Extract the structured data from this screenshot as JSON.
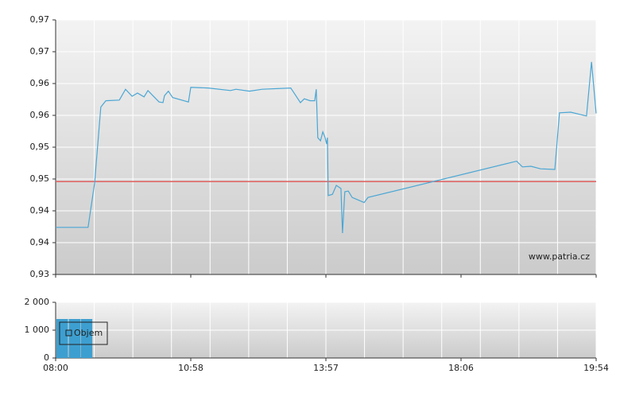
{
  "chart_data": [
    {
      "type": "line",
      "color": "#4aa6d4",
      "x": [
        0,
        0.84,
        1.01,
        1.17,
        1.3,
        1.65,
        1.81,
        1.98,
        2.12,
        2.29,
        2.39,
        2.55,
        2.68,
        2.78,
        2.82,
        2.92,
        3.03,
        3.44,
        3.5,
        3.95,
        4.53,
        4.67,
        5.02,
        5.35,
        6.09,
        6.34,
        6.44,
        6.59,
        6.71,
        6.75,
        6.79,
        6.86,
        6.92,
        6.98,
        7.02,
        7.04,
        7.06,
        7.17,
        7.27,
        7.39,
        7.43,
        7.49,
        7.58,
        7.68,
        7.99,
        8.09,
        11.94,
        12.09,
        12.31,
        12.56,
        12.93,
        13.05,
        13.34,
        13.75,
        13.88,
        14
      ],
      "values": [
        0.9374,
        0.9374,
        0.9444,
        0.9563,
        0.9573,
        0.9574,
        0.9591,
        0.958,
        0.9585,
        0.9579,
        0.9589,
        0.9579,
        0.9571,
        0.957,
        0.9581,
        0.9588,
        0.9578,
        0.9571,
        0.9594,
        0.9593,
        0.9589,
        0.9591,
        0.9588,
        0.9591,
        0.9593,
        0.957,
        0.9576,
        0.9573,
        0.9573,
        0.9591,
        0.9515,
        0.951,
        0.9524,
        0.9515,
        0.9505,
        0.9515,
        0.9424,
        0.9426,
        0.944,
        0.9435,
        0.9365,
        0.943,
        0.9431,
        0.9421,
        0.9413,
        0.9421,
        0.9478,
        0.9469,
        0.947,
        0.9466,
        0.9465,
        0.9554,
        0.9555,
        0.9549,
        0.9634,
        0.9553
      ],
      "reference_line": {
        "value": 0.9446,
        "color": "#e06060"
      },
      "annotation": "www.patria.cz",
      "xlim": [
        0,
        14
      ],
      "xticks": [
        {
          "value": 0,
          "label": "08:00"
        },
        {
          "value": 3.5,
          "label": "10:58"
        },
        {
          "value": 7,
          "label": "13:57"
        },
        {
          "value": 10.5,
          "label": "18:06"
        },
        {
          "value": 14,
          "label": "19:54"
        }
      ],
      "ylim": [
        0.93,
        0.97
      ],
      "yticks": [
        {
          "value": 0.93,
          "label": "0,93"
        },
        {
          "value": 0.935,
          "label": "0,94"
        },
        {
          "value": 0.94,
          "label": "0,94"
        },
        {
          "value": 0.945,
          "label": "0,95"
        },
        {
          "value": 0.95,
          "label": "0,95"
        },
        {
          "value": 0.955,
          "label": "0,96"
        },
        {
          "value": 0.96,
          "label": "0,96"
        },
        {
          "value": 0.965,
          "label": "0,97"
        },
        {
          "value": 0.97,
          "label": "0,97"
        }
      ],
      "grid": true
    },
    {
      "type": "bar",
      "x": [
        0.17,
        0.49,
        0.8
      ],
      "series": [
        {
          "name": "Objem",
          "color": "#3d9fd0",
          "values": [
            1400,
            1400,
            1400
          ]
        }
      ],
      "legend": "upper left",
      "xlim": [
        0,
        14
      ],
      "xticks": [
        {
          "value": 0,
          "label": "08:00"
        },
        {
          "value": 3.5,
          "label": "10:58"
        },
        {
          "value": 7,
          "label": "13:57"
        },
        {
          "value": 10.5,
          "label": "18:06"
        },
        {
          "value": 14,
          "label": "19:54"
        }
      ],
      "ylim": [
        0,
        2000
      ],
      "yticks": [
        0,
        {
          "value": 1000,
          "label": "1 000"
        },
        {
          "value": 2000,
          "label": "2 000"
        }
      ],
      "grid": true
    }
  ]
}
